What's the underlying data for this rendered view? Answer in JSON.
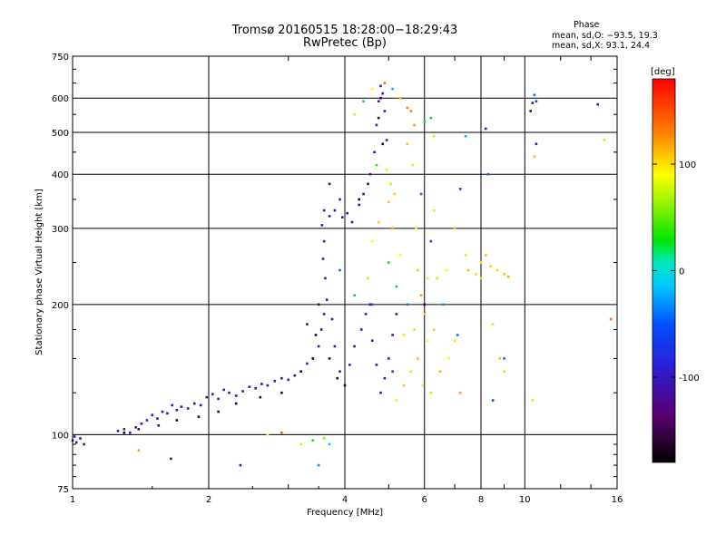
{
  "title_line1": "Tromsø 20160515 18:28:00−18:29:43",
  "title_line2": "RwPretec (Bp)",
  "phase_header": "Phase",
  "phase_o": "mean, sd,O: −93.5, 19.3",
  "phase_x": "mean, sd,X:  93.1, 24.4",
  "chart_data": {
    "type": "scatter",
    "title": "Tromsø 20160515 18:28:00−18:29:43",
    "subtitle": "RwPretec (Bp)",
    "xlabel": "Frequency [MHz]",
    "ylabel": "Stationary phase Virtual Height [km]",
    "x_scale": "log",
    "y_scale": "log",
    "xlim": [
      1,
      16
    ],
    "ylim": [
      75,
      750
    ],
    "x_ticks": [
      1,
      2,
      4,
      6,
      8,
      10,
      16
    ],
    "y_ticks": [
      75,
      100,
      200,
      300,
      400,
      500,
      600,
      750
    ],
    "grid": true,
    "colorbar": {
      "label": "[deg]",
      "range": [
        -180,
        180
      ],
      "ticks": [
        -100,
        0,
        100
      ],
      "colormap": "rainbow"
    },
    "points": [
      [
        1.0,
        97,
        -110
      ],
      [
        1.02,
        96,
        -115
      ],
      [
        1.04,
        98,
        -105
      ],
      [
        1.06,
        95,
        -120
      ],
      [
        1.01,
        99,
        -100
      ],
      [
        1.26,
        102,
        -110
      ],
      [
        1.3,
        103,
        -105
      ],
      [
        1.34,
        101,
        -100
      ],
      [
        1.38,
        104,
        -112
      ],
      [
        1.42,
        106,
        -108
      ],
      [
        1.46,
        108,
        -95
      ],
      [
        1.5,
        111,
        -100
      ],
      [
        1.54,
        109,
        -118
      ],
      [
        1.58,
        113,
        -104
      ],
      [
        1.62,
        112,
        -98
      ],
      [
        1.66,
        117,
        -110
      ],
      [
        1.7,
        114,
        -102
      ],
      [
        1.74,
        116,
        -95
      ],
      [
        1.8,
        115,
        -108
      ],
      [
        1.86,
        118,
        -120
      ],
      [
        1.92,
        117,
        -100
      ],
      [
        1.98,
        122,
        -112
      ],
      [
        2.04,
        124,
        -105
      ],
      [
        2.1,
        121,
        -98
      ],
      [
        2.16,
        127,
        -110
      ],
      [
        2.22,
        125,
        -102
      ],
      [
        2.3,
        123,
        -115
      ],
      [
        2.38,
        126,
        -100
      ],
      [
        2.46,
        129,
        -108
      ],
      [
        2.54,
        128,
        -95
      ],
      [
        2.62,
        131,
        -112
      ],
      [
        2.7,
        130,
        -104
      ],
      [
        2.8,
        133,
        -100
      ],
      [
        2.9,
        135,
        -110
      ],
      [
        3.0,
        134,
        -98
      ],
      [
        3.1,
        137,
        -105
      ],
      [
        3.2,
        140,
        -115
      ],
      [
        3.3,
        146,
        -100
      ],
      [
        3.4,
        150,
        -108
      ],
      [
        3.5,
        160,
        -102
      ],
      [
        3.55,
        175,
        -112
      ],
      [
        3.6,
        190,
        -100
      ],
      [
        3.65,
        205,
        -110
      ],
      [
        3.62,
        230,
        -98
      ],
      [
        3.58,
        255,
        -105
      ],
      [
        3.6,
        280,
        -100
      ],
      [
        3.56,
        305,
        -112
      ],
      [
        3.6,
        330,
        -104
      ],
      [
        3.7,
        320,
        -98
      ],
      [
        3.8,
        330,
        -110
      ],
      [
        3.95,
        318,
        -102
      ],
      [
        4.05,
        325,
        -100
      ],
      [
        4.15,
        310,
        -108
      ],
      [
        4.3,
        340,
        -95
      ],
      [
        4.4,
        360,
        -110
      ],
      [
        4.55,
        400,
        -105
      ],
      [
        4.65,
        450,
        -100
      ],
      [
        4.7,
        520,
        -112
      ],
      [
        4.75,
        590,
        -98
      ],
      [
        4.8,
        640,
        -104
      ],
      [
        4.85,
        615,
        -110
      ],
      [
        4.9,
        560,
        -102
      ],
      [
        4.95,
        480,
        -100
      ],
      [
        3.7,
        380,
        -120
      ],
      [
        3.9,
        350,
        -108
      ],
      [
        4.1,
        145,
        -100
      ],
      [
        4.2,
        160,
        -112
      ],
      [
        4.35,
        175,
        -98
      ],
      [
        4.45,
        190,
        -110
      ],
      [
        4.55,
        200,
        -104
      ],
      [
        3.9,
        140,
        -100
      ],
      [
        3.8,
        160,
        -108
      ],
      [
        3.75,
        185,
        -115
      ],
      [
        4.6,
        165,
        -100
      ],
      [
        4.7,
        145,
        -110
      ],
      [
        4.8,
        125,
        -102
      ],
      [
        4.9,
        135,
        -98
      ],
      [
        5.0,
        150,
        -112
      ],
      [
        5.1,
        170,
        -105
      ],
      [
        5.2,
        190,
        -100
      ],
      [
        5.0,
        345,
        110
      ],
      [
        5.05,
        380,
        100
      ],
      [
        5.1,
        300,
        120
      ],
      [
        4.95,
        410,
        95
      ],
      [
        5.15,
        360,
        105
      ],
      [
        4.5,
        230,
        80
      ],
      [
        4.6,
        280,
        90
      ],
      [
        4.75,
        310,
        105
      ],
      [
        5.3,
        260,
        90
      ],
      [
        5.4,
        170,
        100
      ],
      [
        5.6,
        140,
        100
      ],
      [
        5.8,
        150,
        110
      ],
      [
        5.95,
        130,
        95
      ],
      [
        6.2,
        125,
        100
      ],
      [
        6.5,
        140,
        110
      ],
      [
        6.8,
        150,
        90
      ],
      [
        7.0,
        165,
        100
      ],
      [
        7.2,
        125,
        120
      ],
      [
        5.5,
        470,
        110
      ],
      [
        5.6,
        560,
        130
      ],
      [
        5.7,
        520,
        120
      ],
      [
        5.65,
        420,
        100
      ],
      [
        5.75,
        300,
        90
      ],
      [
        5.8,
        240,
        105
      ],
      [
        5.9,
        210,
        120
      ],
      [
        6.0,
        190,
        110
      ],
      [
        6.4,
        230,
        100
      ],
      [
        6.7,
        240,
        90
      ],
      [
        7.5,
        240,
        110
      ],
      [
        7.8,
        235,
        100
      ],
      [
        8.0,
        250,
        95
      ],
      [
        8.4,
        245,
        105
      ],
      [
        8.7,
        240,
        100
      ],
      [
        9.0,
        235,
        110
      ],
      [
        9.2,
        232,
        120
      ],
      [
        7.4,
        260,
        100
      ],
      [
        8.2,
        260,
        110
      ],
      [
        8.5,
        180,
        100
      ],
      [
        8.8,
        150,
        110
      ],
      [
        9.0,
        140,
        100
      ],
      [
        5.2,
        120,
        100
      ],
      [
        5.4,
        130,
        110
      ],
      [
        5.7,
        175,
        100
      ],
      [
        6.1,
        165,
        90
      ],
      [
        6.3,
        175,
        105
      ],
      [
        4.7,
        420,
        40
      ],
      [
        5.0,
        250,
        30
      ],
      [
        5.2,
        220,
        20
      ],
      [
        4.2,
        210,
        -20
      ],
      [
        3.9,
        240,
        -40
      ],
      [
        4.6,
        200,
        -50
      ],
      [
        5.1,
        140,
        -60
      ],
      [
        5.5,
        200,
        -40
      ],
      [
        6.2,
        280,
        -50
      ],
      [
        6.6,
        200,
        -30
      ],
      [
        7.1,
        170,
        -40
      ],
      [
        8.5,
        120,
        -60
      ],
      [
        9.0,
        150,
        -40
      ],
      [
        3.3,
        180,
        -150
      ],
      [
        3.45,
        170,
        -160
      ],
      [
        3.5,
        200,
        -145
      ],
      [
        3.7,
        150,
        -150
      ],
      [
        3.85,
        135,
        -155
      ],
      [
        4.0,
        130,
        -165
      ],
      [
        3.4,
        150,
        -150
      ],
      [
        3.2,
        140,
        -145
      ],
      [
        2.9,
        125,
        -160
      ],
      [
        2.6,
        122,
        -150
      ],
      [
        2.3,
        118,
        -155
      ],
      [
        2.1,
        113,
        -148
      ],
      [
        1.9,
        110,
        -152
      ],
      [
        1.7,
        108,
        -158
      ],
      [
        1.55,
        105,
        -150
      ],
      [
        1.4,
        103,
        -145
      ],
      [
        1.3,
        101,
        -155
      ],
      [
        4.8,
        600,
        -150
      ],
      [
        4.75,
        540,
        -155
      ],
      [
        4.85,
        470,
        -160
      ],
      [
        4.5,
        380,
        -148
      ],
      [
        4.3,
        350,
        -152
      ],
      [
        2.35,
        85,
        -100
      ],
      [
        1.65,
        88,
        -120
      ],
      [
        1.4,
        92,
        120
      ],
      [
        3.4,
        97,
        30
      ],
      [
        3.6,
        98,
        60
      ],
      [
        3.5,
        85,
        -30
      ],
      [
        3.7,
        95,
        -10
      ],
      [
        3.2,
        95,
        80
      ],
      [
        2.7,
        100,
        90
      ],
      [
        2.9,
        101,
        150
      ],
      [
        10.5,
        610,
        -40
      ],
      [
        10.6,
        590,
        -60
      ],
      [
        10.6,
        470,
        -100
      ],
      [
        10.5,
        440,
        110
      ],
      [
        10.4,
        585,
        -110
      ],
      [
        10.3,
        560,
        -150
      ],
      [
        14.5,
        580,
        -100
      ],
      [
        15.0,
        480,
        100
      ],
      [
        15.5,
        185,
        140
      ],
      [
        10.4,
        120,
        100
      ],
      [
        8.2,
        510,
        -80
      ],
      [
        8.3,
        400,
        -40
      ],
      [
        8.0,
        230,
        100
      ],
      [
        6.3,
        490,
        100
      ],
      [
        7.4,
        490,
        -20
      ],
      [
        6.2,
        540,
        30
      ],
      [
        6.0,
        530,
        20
      ],
      [
        5.5,
        570,
        130
      ],
      [
        5.3,
        600,
        110
      ],
      [
        4.9,
        650,
        140
      ],
      [
        4.6,
        630,
        90
      ],
      [
        4.4,
        590,
        20
      ],
      [
        4.2,
        550,
        80
      ],
      [
        5.1,
        630,
        -20
      ],
      [
        6.0,
        200,
        -160
      ],
      [
        7.2,
        370,
        -60
      ],
      [
        7.0,
        300,
        110
      ],
      [
        5.9,
        360,
        -40
      ],
      [
        6.3,
        330,
        80
      ],
      [
        6.1,
        230,
        100
      ]
    ]
  }
}
